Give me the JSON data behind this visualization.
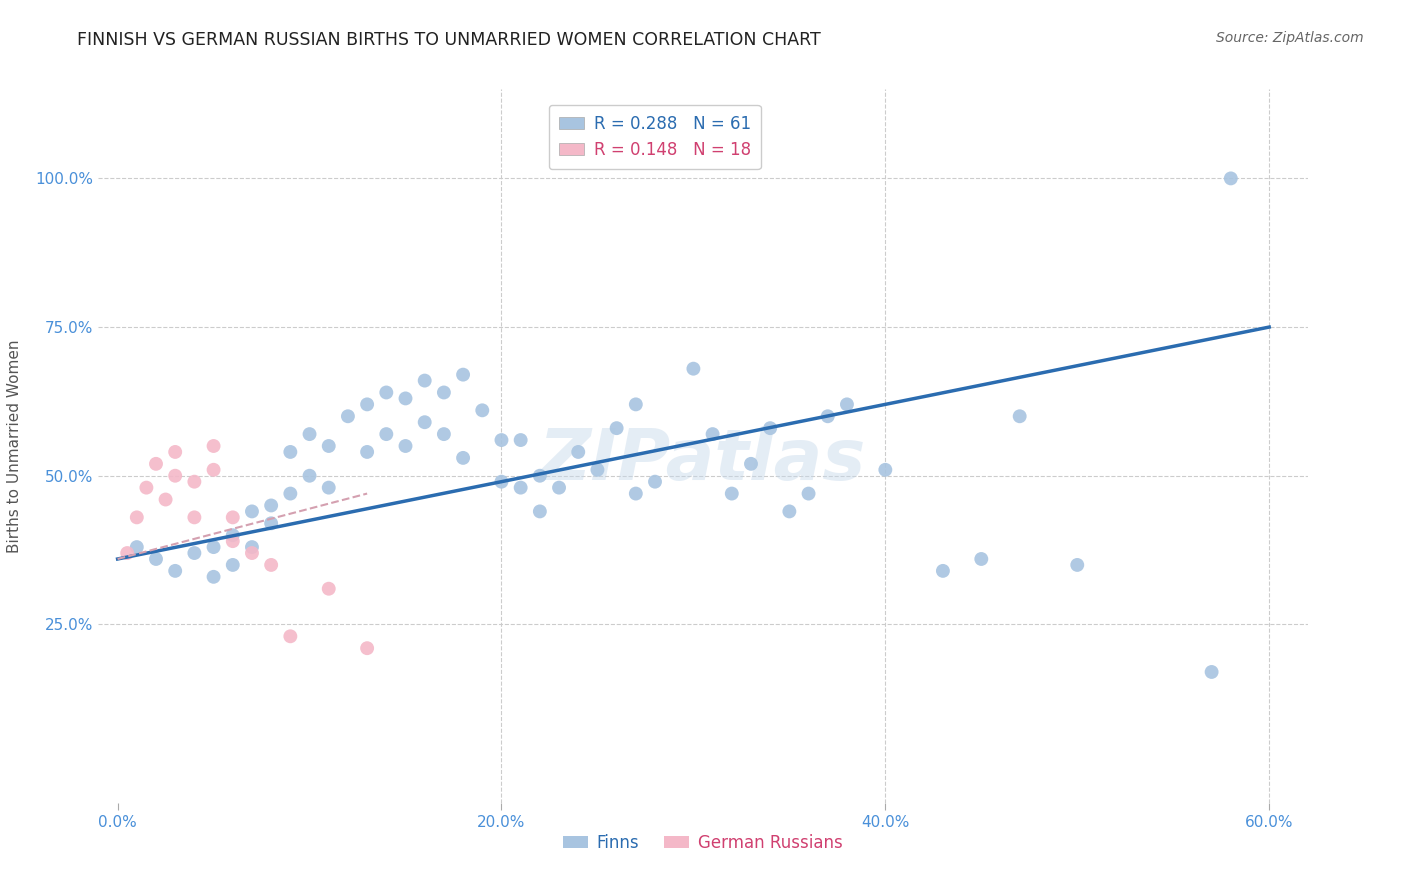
{
  "title": "FINNISH VS GERMAN RUSSIAN BIRTHS TO UNMARRIED WOMEN CORRELATION CHART",
  "source": "Source: ZipAtlas.com",
  "xlabel_ticks": [
    "0.0%",
    "20.0%",
    "40.0%",
    "60.0%"
  ],
  "xlabel_tick_vals": [
    0.0,
    20.0,
    40.0,
    60.0
  ],
  "ylabel_ticks": [
    "25.0%",
    "50.0%",
    "75.0%",
    "100.0%"
  ],
  "ylabel_tick_vals": [
    25.0,
    50.0,
    75.0,
    100.0
  ],
  "xlim": [
    -1,
    62
  ],
  "ylim": [
    -5,
    115
  ],
  "ylabel": "Births to Unmarried Women",
  "finns_x": [
    1,
    2,
    3,
    4,
    5,
    5,
    6,
    6,
    7,
    7,
    8,
    8,
    9,
    9,
    10,
    10,
    11,
    11,
    12,
    13,
    13,
    14,
    14,
    15,
    15,
    16,
    16,
    17,
    17,
    18,
    18,
    19,
    20,
    20,
    21,
    21,
    22,
    22,
    23,
    24,
    25,
    26,
    27,
    27,
    28,
    30,
    31,
    32,
    33,
    34,
    35,
    36,
    37,
    38,
    40,
    43,
    45,
    47,
    50,
    57,
    58
  ],
  "finns_y": [
    38,
    36,
    34,
    37,
    38,
    33,
    40,
    35,
    44,
    38,
    45,
    42,
    54,
    47,
    57,
    50,
    55,
    48,
    60,
    62,
    54,
    64,
    57,
    63,
    55,
    66,
    59,
    64,
    57,
    67,
    53,
    61,
    49,
    56,
    48,
    56,
    50,
    44,
    48,
    54,
    51,
    58,
    47,
    62,
    49,
    68,
    57,
    47,
    52,
    58,
    44,
    47,
    60,
    62,
    51,
    34,
    36,
    60,
    35,
    17,
    100
  ],
  "finn_trendline_x": [
    0,
    60
  ],
  "finn_trendline_y": [
    36,
    75
  ],
  "german_russian_x": [
    0.5,
    1,
    1.5,
    2,
    2.5,
    3,
    3,
    4,
    4,
    5,
    5,
    6,
    6,
    7,
    8,
    9,
    11,
    13
  ],
  "german_russian_y": [
    37,
    43,
    48,
    52,
    46,
    50,
    54,
    49,
    43,
    55,
    51,
    43,
    39,
    37,
    35,
    23,
    31,
    21
  ],
  "german_russian_trendline_x": [
    0,
    13
  ],
  "german_russian_trendline_y": [
    36,
    47
  ],
  "finn_r": "0.288",
  "finn_n": "61",
  "german_russian_r": "0.148",
  "german_russian_n": "18",
  "finn_color": "#a8c4e0",
  "german_russian_color": "#f4b8c8",
  "finn_line_color": "#2b6cb0",
  "german_russian_line_color": "#d4a0b0",
  "watermark_text": "ZIPatlas",
  "background_color": "#ffffff",
  "grid_color": "#cccccc",
  "title_color": "#222222",
  "source_color": "#666666",
  "axis_color": "#4a90d9",
  "ylabel_color": "#555555"
}
